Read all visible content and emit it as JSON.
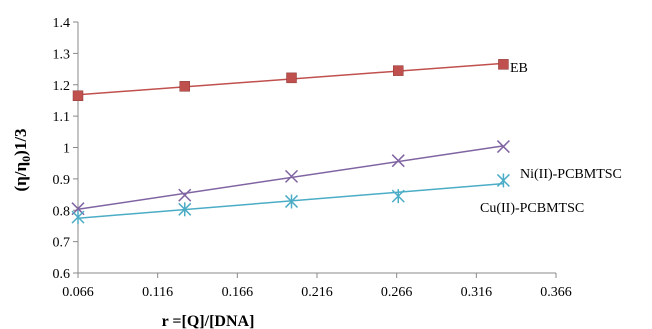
{
  "chart_data": {
    "type": "scatter",
    "xlabel": "r =[Q]/[DNA]",
    "ylabel_main": "(η/η",
    "ylabel_sub": "0",
    "ylabel_tail": ")1/3",
    "xlim": [
      0.066,
      0.366
    ],
    "ylim": [
      0.6,
      1.4
    ],
    "xticks": [
      "0.066",
      "0.116",
      "0.166",
      "0.216",
      "0.266",
      "0.316",
      "0.366"
    ],
    "yticks": [
      "0.6",
      "0.7",
      "0.8",
      "0.9",
      "1",
      "1.1",
      "1.2",
      "1.3",
      "1.4"
    ],
    "x": [
      0.066,
      0.133,
      0.2,
      0.267,
      0.333
    ],
    "series": [
      {
        "name": "EB",
        "marker": "square",
        "color": "#c0504d",
        "values": [
          1.165,
          1.195,
          1.222,
          1.245,
          1.265
        ]
      },
      {
        "name": "Ni(II)-PCBMTSC",
        "marker": "x",
        "color": "#8064a2",
        "values": [
          0.805,
          0.848,
          0.908,
          0.958,
          1.003
        ]
      },
      {
        "name": "Cu(II)-PCBMTSC",
        "marker": "asterisk",
        "color": "#4bacc6",
        "values": [
          0.778,
          0.803,
          0.828,
          0.845,
          0.895
        ]
      }
    ]
  }
}
